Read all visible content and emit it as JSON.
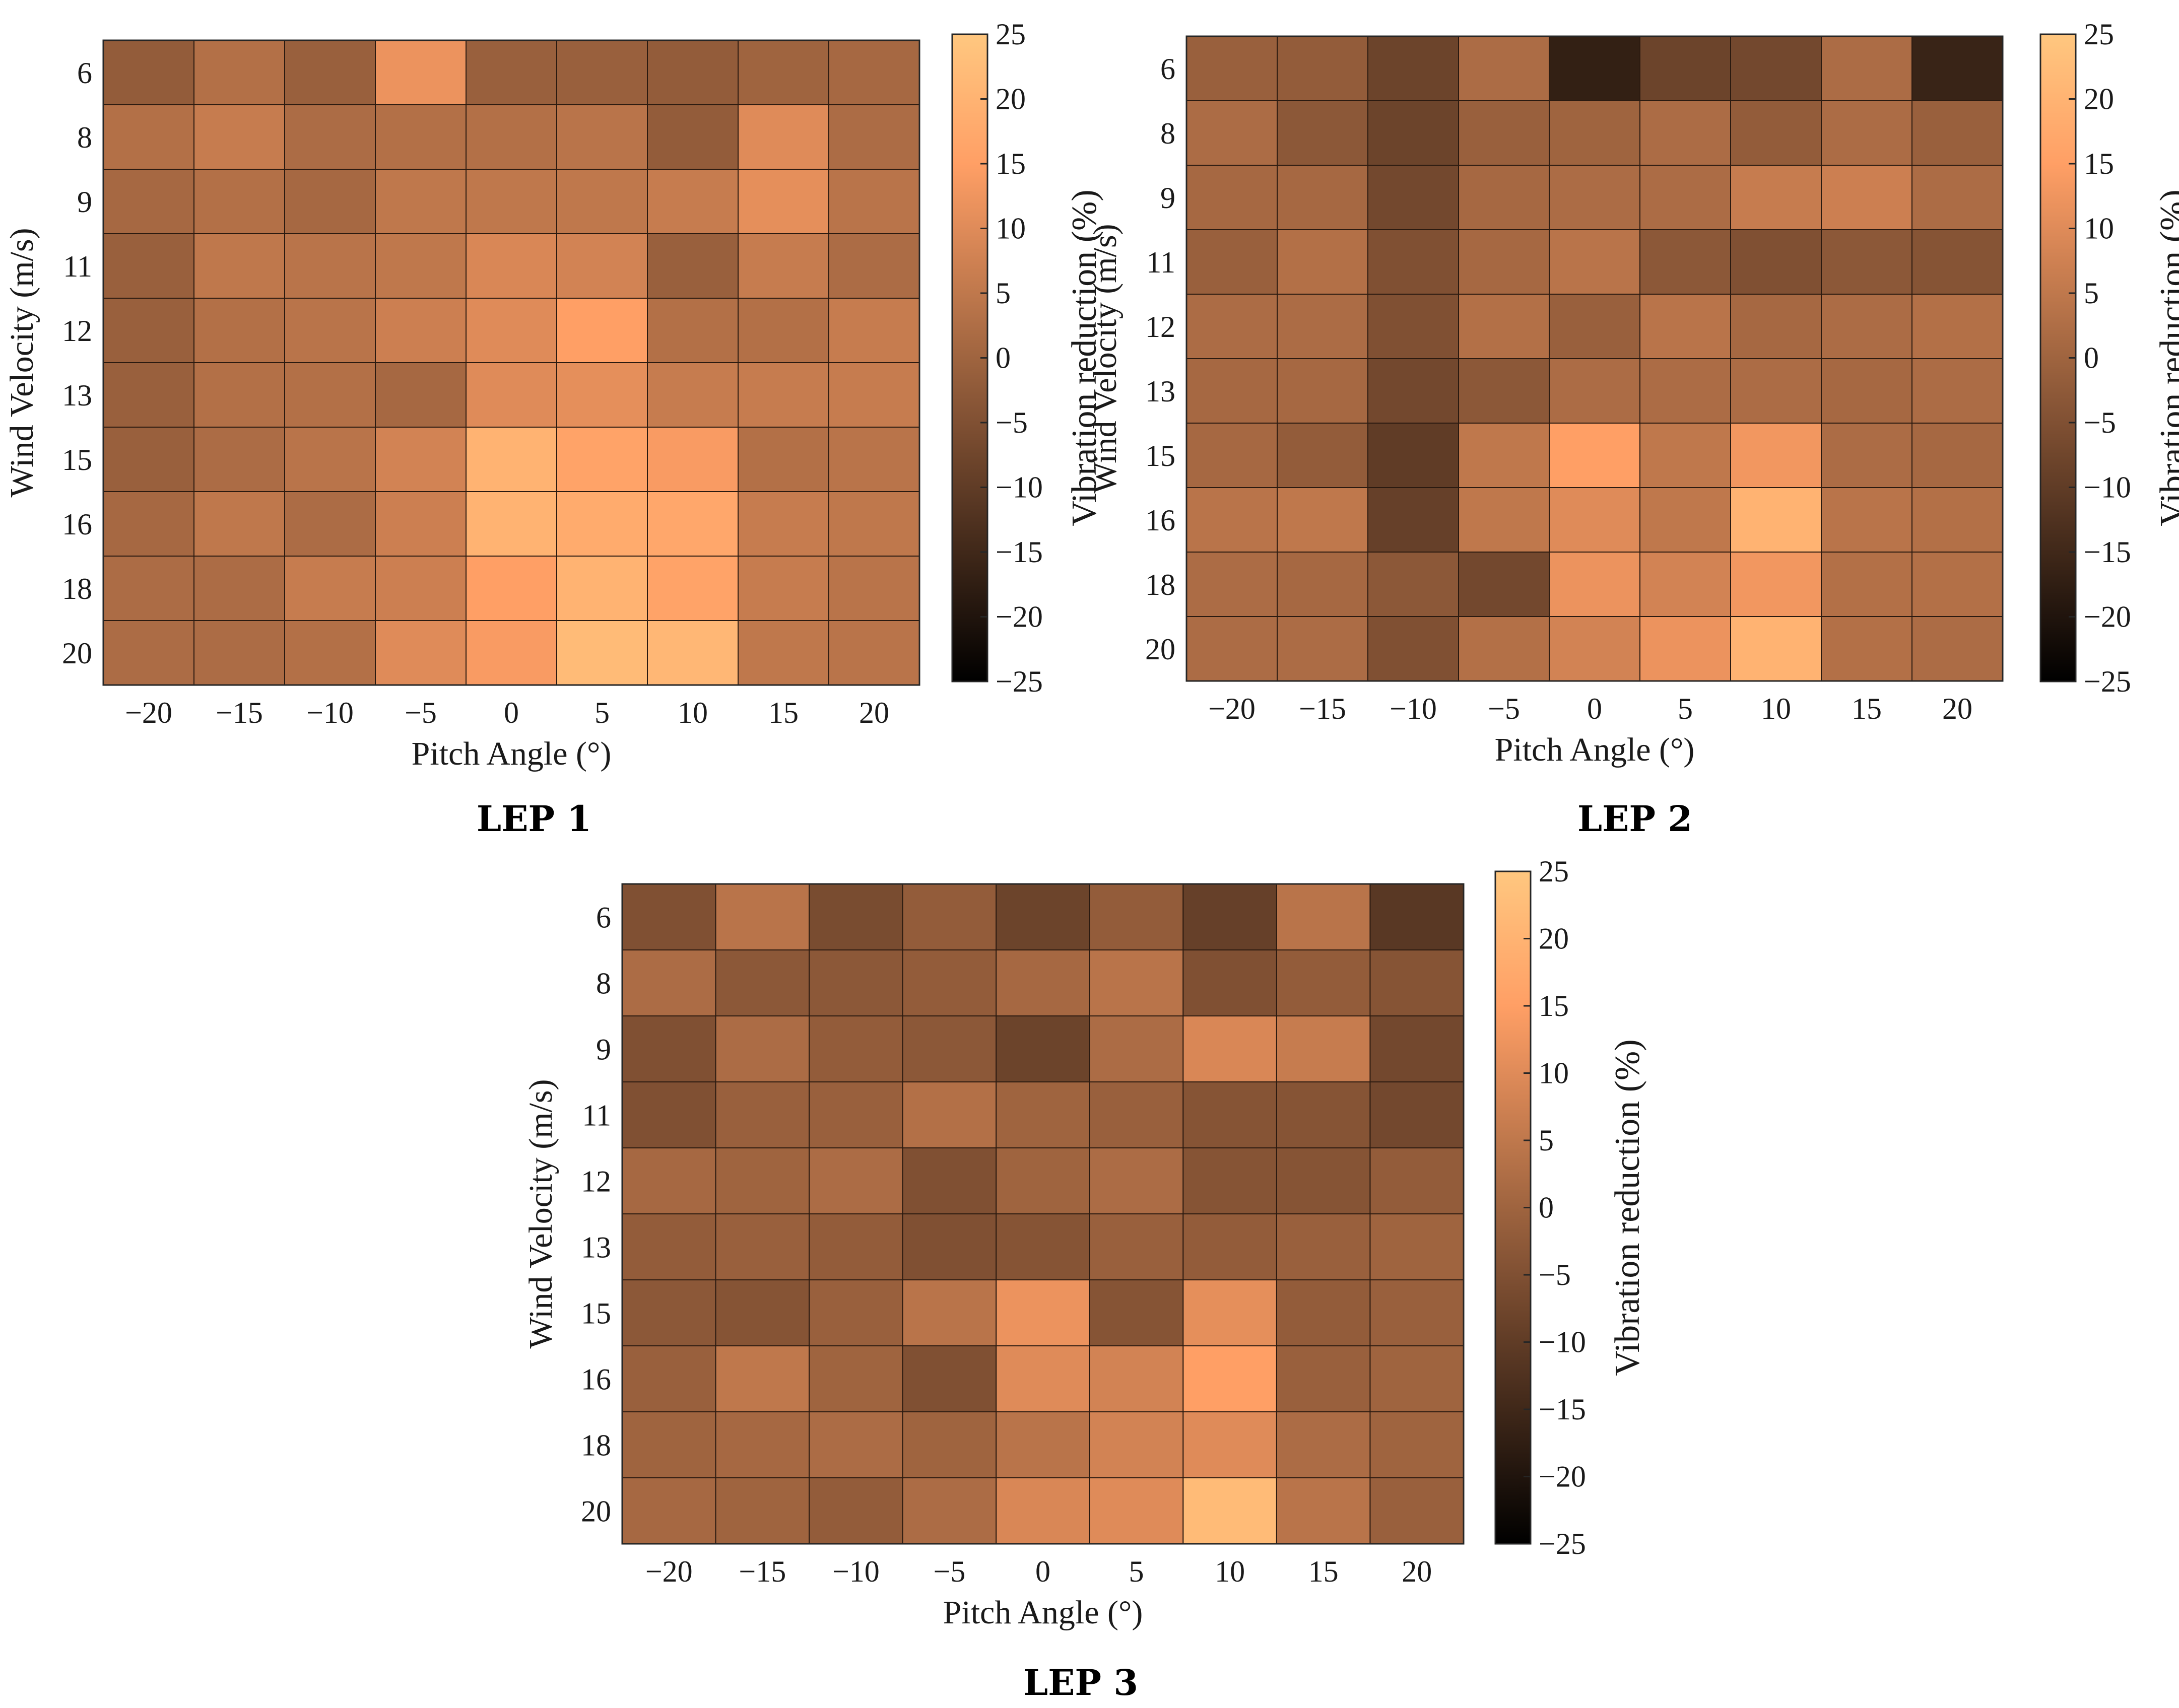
{
  "colormap": {
    "name": "copper",
    "low_color": "#000000",
    "high_color": "#FFC77F"
  },
  "chart_data": [
    {
      "type": "heatmap",
      "title": "LEP 1",
      "xlabel": "Pitch Angle (°)",
      "ylabel": "Wind Velocity (m/s)",
      "colorbar_label": "Vibration reduction (%)",
      "x": [
        -20,
        -15,
        -10,
        -5,
        0,
        5,
        10,
        15,
        20
      ],
      "x_tick_labels": [
        "−20",
        "−15",
        "−10",
        "−5",
        "0",
        "5",
        "10",
        "15",
        "20"
      ],
      "y": [
        6,
        8,
        9,
        11,
        12,
        13,
        15,
        16,
        18,
        20
      ],
      "y_tick_labels": [
        "6",
        "8",
        "9",
        "11",
        "12",
        "13",
        "15",
        "16",
        "18",
        "20"
      ],
      "clim": [
        -25,
        25
      ],
      "colorbar_ticks": [
        25,
        20,
        15,
        10,
        5,
        0,
        -5,
        -10,
        -15,
        -20,
        -25
      ],
      "colorbar_tick_labels": [
        "25",
        "20",
        "15",
        "10",
        "5",
        "0",
        "−5",
        "−10",
        "−15",
        "−20",
        "−25"
      ],
      "values": [
        [
          -2,
          3,
          -1,
          12,
          -1,
          -1,
          -2,
          0,
          1
        ],
        [
          3,
          6,
          2,
          3,
          3,
          4,
          -2,
          10,
          2
        ],
        [
          1,
          3,
          1,
          5,
          5,
          5,
          6,
          11,
          4
        ],
        [
          -1,
          5,
          4,
          5,
          9,
          8,
          -1,
          6,
          2
        ],
        [
          -1,
          3,
          4,
          7,
          10,
          15,
          3,
          3,
          6
        ],
        [
          -1,
          3,
          3,
          1,
          10,
          11,
          6,
          6,
          6
        ],
        [
          -1,
          2,
          4,
          8,
          20,
          16,
          14,
          3,
          4
        ],
        [
          1,
          5,
          2,
          7,
          20,
          18,
          17,
          6,
          5
        ],
        [
          2,
          2,
          6,
          7,
          15,
          20,
          16,
          6,
          4
        ],
        [
          2,
          2,
          3,
          10,
          14,
          22,
          21,
          5,
          4
        ]
      ]
    },
    {
      "type": "heatmap",
      "title": "LEP 2",
      "xlabel": "Pitch Angle (°)",
      "ylabel": "Wind Velocity (m/s)",
      "colorbar_label": "Vibration reduction (%)",
      "x": [
        -20,
        -15,
        -10,
        -5,
        0,
        5,
        10,
        15,
        20
      ],
      "x_tick_labels": [
        "−20",
        "−15",
        "−10",
        "−5",
        "0",
        "5",
        "10",
        "15",
        "20"
      ],
      "y": [
        6,
        8,
        9,
        11,
        12,
        13,
        15,
        16,
        18,
        20
      ],
      "y_tick_labels": [
        "6",
        "8",
        "9",
        "11",
        "12",
        "13",
        "15",
        "16",
        "18",
        "20"
      ],
      "clim": [
        -25,
        25
      ],
      "colorbar_ticks": [
        25,
        20,
        15,
        10,
        5,
        0,
        -5,
        -10,
        -15,
        -20,
        -25
      ],
      "colorbar_tick_labels": [
        "25",
        "20",
        "15",
        "10",
        "5",
        "0",
        "−5",
        "−10",
        "−15",
        "−20",
        "−25"
      ],
      "values": [
        [
          -1,
          -2,
          -8,
          2,
          -17,
          -8,
          -7,
          2,
          -16
        ],
        [
          2,
          -3,
          -8,
          -1,
          0,
          2,
          -2,
          2,
          -1
        ],
        [
          1,
          1,
          -7,
          1,
          2,
          2,
          6,
          7,
          2
        ],
        [
          -1,
          3,
          -5,
          1,
          4,
          -3,
          -5,
          -3,
          -4
        ],
        [
          2,
          2,
          -5,
          3,
          -1,
          4,
          1,
          2,
          3
        ],
        [
          1,
          1,
          -7,
          -3,
          2,
          2,
          2,
          1,
          2
        ],
        [
          1,
          -2,
          -10,
          5,
          15,
          5,
          13,
          2,
          1
        ],
        [
          4,
          5,
          -9,
          5,
          10,
          5,
          20,
          4,
          3
        ],
        [
          2,
          1,
          -3,
          -7,
          12,
          8,
          13,
          3,
          3
        ],
        [
          2,
          2,
          -5,
          3,
          8,
          12,
          20,
          3,
          2
        ]
      ]
    },
    {
      "type": "heatmap",
      "title": "LEP 3",
      "xlabel": "Pitch Angle (°)",
      "ylabel": "Wind Velocity (m/s)",
      "colorbar_label": "Vibration reduction (%)",
      "x": [
        -20,
        -15,
        -10,
        -5,
        0,
        5,
        10,
        15,
        20
      ],
      "x_tick_labels": [
        "−20",
        "−15",
        "−10",
        "−5",
        "0",
        "5",
        "10",
        "15",
        "20"
      ],
      "y": [
        6,
        8,
        9,
        11,
        12,
        13,
        15,
        16,
        18,
        20
      ],
      "y_tick_labels": [
        "6",
        "8",
        "9",
        "11",
        "12",
        "13",
        "15",
        "16",
        "18",
        "20"
      ],
      "clim": [
        -25,
        25
      ],
      "colorbar_ticks": [
        25,
        20,
        15,
        10,
        5,
        0,
        -5,
        -10,
        -15,
        -20,
        -25
      ],
      "colorbar_tick_labels": [
        "25",
        "20",
        "15",
        "10",
        "5",
        "0",
        "−5",
        "−10",
        "−15",
        "−20",
        "−25"
      ],
      "values": [
        [
          -5,
          4,
          -6,
          -2,
          -8,
          -2,
          -9,
          4,
          -11
        ],
        [
          2,
          -3,
          -3,
          -2,
          1,
          4,
          -5,
          -2,
          -4
        ],
        [
          -5,
          2,
          -2,
          -3,
          -8,
          2,
          9,
          6,
          -7
        ],
        [
          -5,
          -1,
          -1,
          3,
          0,
          -1,
          -4,
          -4,
          -7
        ],
        [
          1,
          0,
          2,
          -5,
          0,
          2,
          -4,
          -4,
          -2
        ],
        [
          -2,
          -1,
          -2,
          -5,
          -4,
          -1,
          -2,
          -1,
          0
        ],
        [
          -3,
          -4,
          -1,
          4,
          12,
          -4,
          11,
          -2,
          -1
        ],
        [
          -1,
          5,
          0,
          -5,
          10,
          8,
          15,
          -1,
          0
        ],
        [
          0,
          1,
          2,
          0,
          4,
          8,
          10,
          2,
          0
        ],
        [
          1,
          0,
          -2,
          2,
          9,
          10,
          22,
          4,
          -1
        ]
      ]
    }
  ]
}
